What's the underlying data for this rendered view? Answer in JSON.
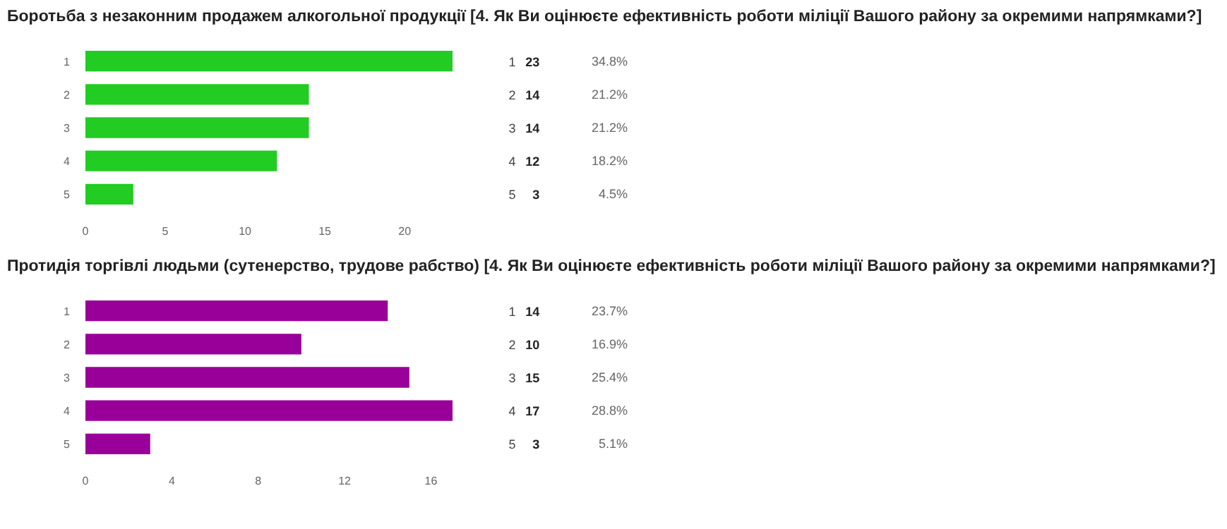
{
  "chart_data": [
    {
      "type": "bar",
      "orientation": "horizontal",
      "title": "Боротьба з незаконним продажем алкогольної продукції [4. Як Ви оцінюєте ефективність роботи міліції Вашого району за окремими напрямками?]",
      "categories": [
        "1",
        "2",
        "3",
        "4",
        "5"
      ],
      "values": [
        23,
        14,
        14,
        12,
        3
      ],
      "color": "#22cc22",
      "xlim": [
        0,
        23
      ],
      "xticks": [
        0,
        5,
        10,
        15,
        20
      ],
      "data_labels": true,
      "grid": false,
      "annotations": [
        "34.8%",
        "21.2%",
        "21.2%",
        "18.2%",
        "4.5%"
      ]
    },
    {
      "type": "bar",
      "orientation": "horizontal",
      "title": "Протидія торгівлі людьми (сутенерство, трудове рабство) [4. Як Ви оцінюєте ефективність роботи міліції Вашого району за окремими напрямками?]",
      "categories": [
        "1",
        "2",
        "3",
        "4",
        "5"
      ],
      "values": [
        14,
        10,
        15,
        17,
        3
      ],
      "color": "#990099",
      "xlim": [
        0,
        17
      ],
      "xticks": [
        0,
        4,
        8,
        12,
        16
      ],
      "data_labels": true,
      "grid": false,
      "annotations": [
        "23.7%",
        "16.9%",
        "25.4%",
        "28.8%",
        "5.1%"
      ]
    }
  ]
}
